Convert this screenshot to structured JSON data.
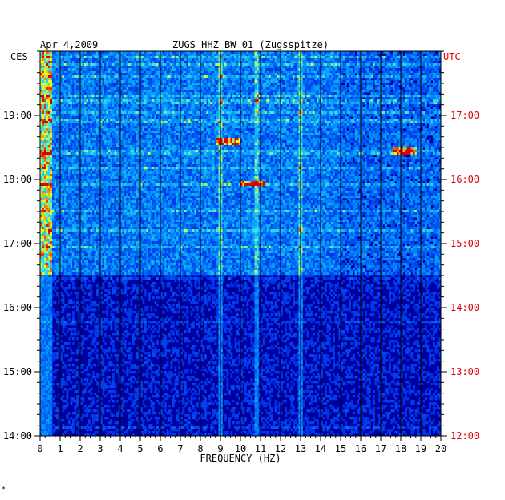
{
  "header": {
    "date": "Apr 4,2009",
    "station": "ZUGS HHZ BW 01 (Zugsspitze)",
    "left_tz": "CES",
    "right_tz": "UTC"
  },
  "footer": {
    "corner_mark": "*"
  },
  "colors": {
    "low": "#00009e",
    "mid": "#00a8ff",
    "high": "#ffff00",
    "peak": "#e00000",
    "right_axis_text": "#e00000",
    "grid": "#000000"
  },
  "chart_data": {
    "type": "heatmap",
    "title": "ZUGS HHZ BW 01 (Zugsspitze)",
    "xlabel": "FREQUENCY (HZ)",
    "ylabel": "",
    "x_ticks": [
      "0",
      "1",
      "2",
      "3",
      "4",
      "5",
      "6",
      "7",
      "8",
      "9",
      "10",
      "11",
      "12",
      "13",
      "14",
      "15",
      "16",
      "17",
      "18",
      "19",
      "20"
    ],
    "xlim": [
      0,
      20
    ],
    "left_y_ticks": [
      "14:00",
      "15:00",
      "16:00",
      "17:00",
      "18:00",
      "19:00"
    ],
    "right_y_ticks": [
      "12:00",
      "13:00",
      "14:00",
      "15:00",
      "16:00",
      "17:00"
    ],
    "ylim_cest_hours": [
      14,
      20
    ],
    "grid": true,
    "active_period_start_cest": "16:30",
    "persistent_lines_hz": [
      9,
      10.8,
      13
    ],
    "hot_spots": [
      {
        "freq_hz": 9.4,
        "time_cest": "18:35"
      },
      {
        "freq_hz": 18.2,
        "time_cest": "18:27"
      },
      {
        "freq_hz": 10.6,
        "time_cest": "17:56"
      }
    ]
  }
}
